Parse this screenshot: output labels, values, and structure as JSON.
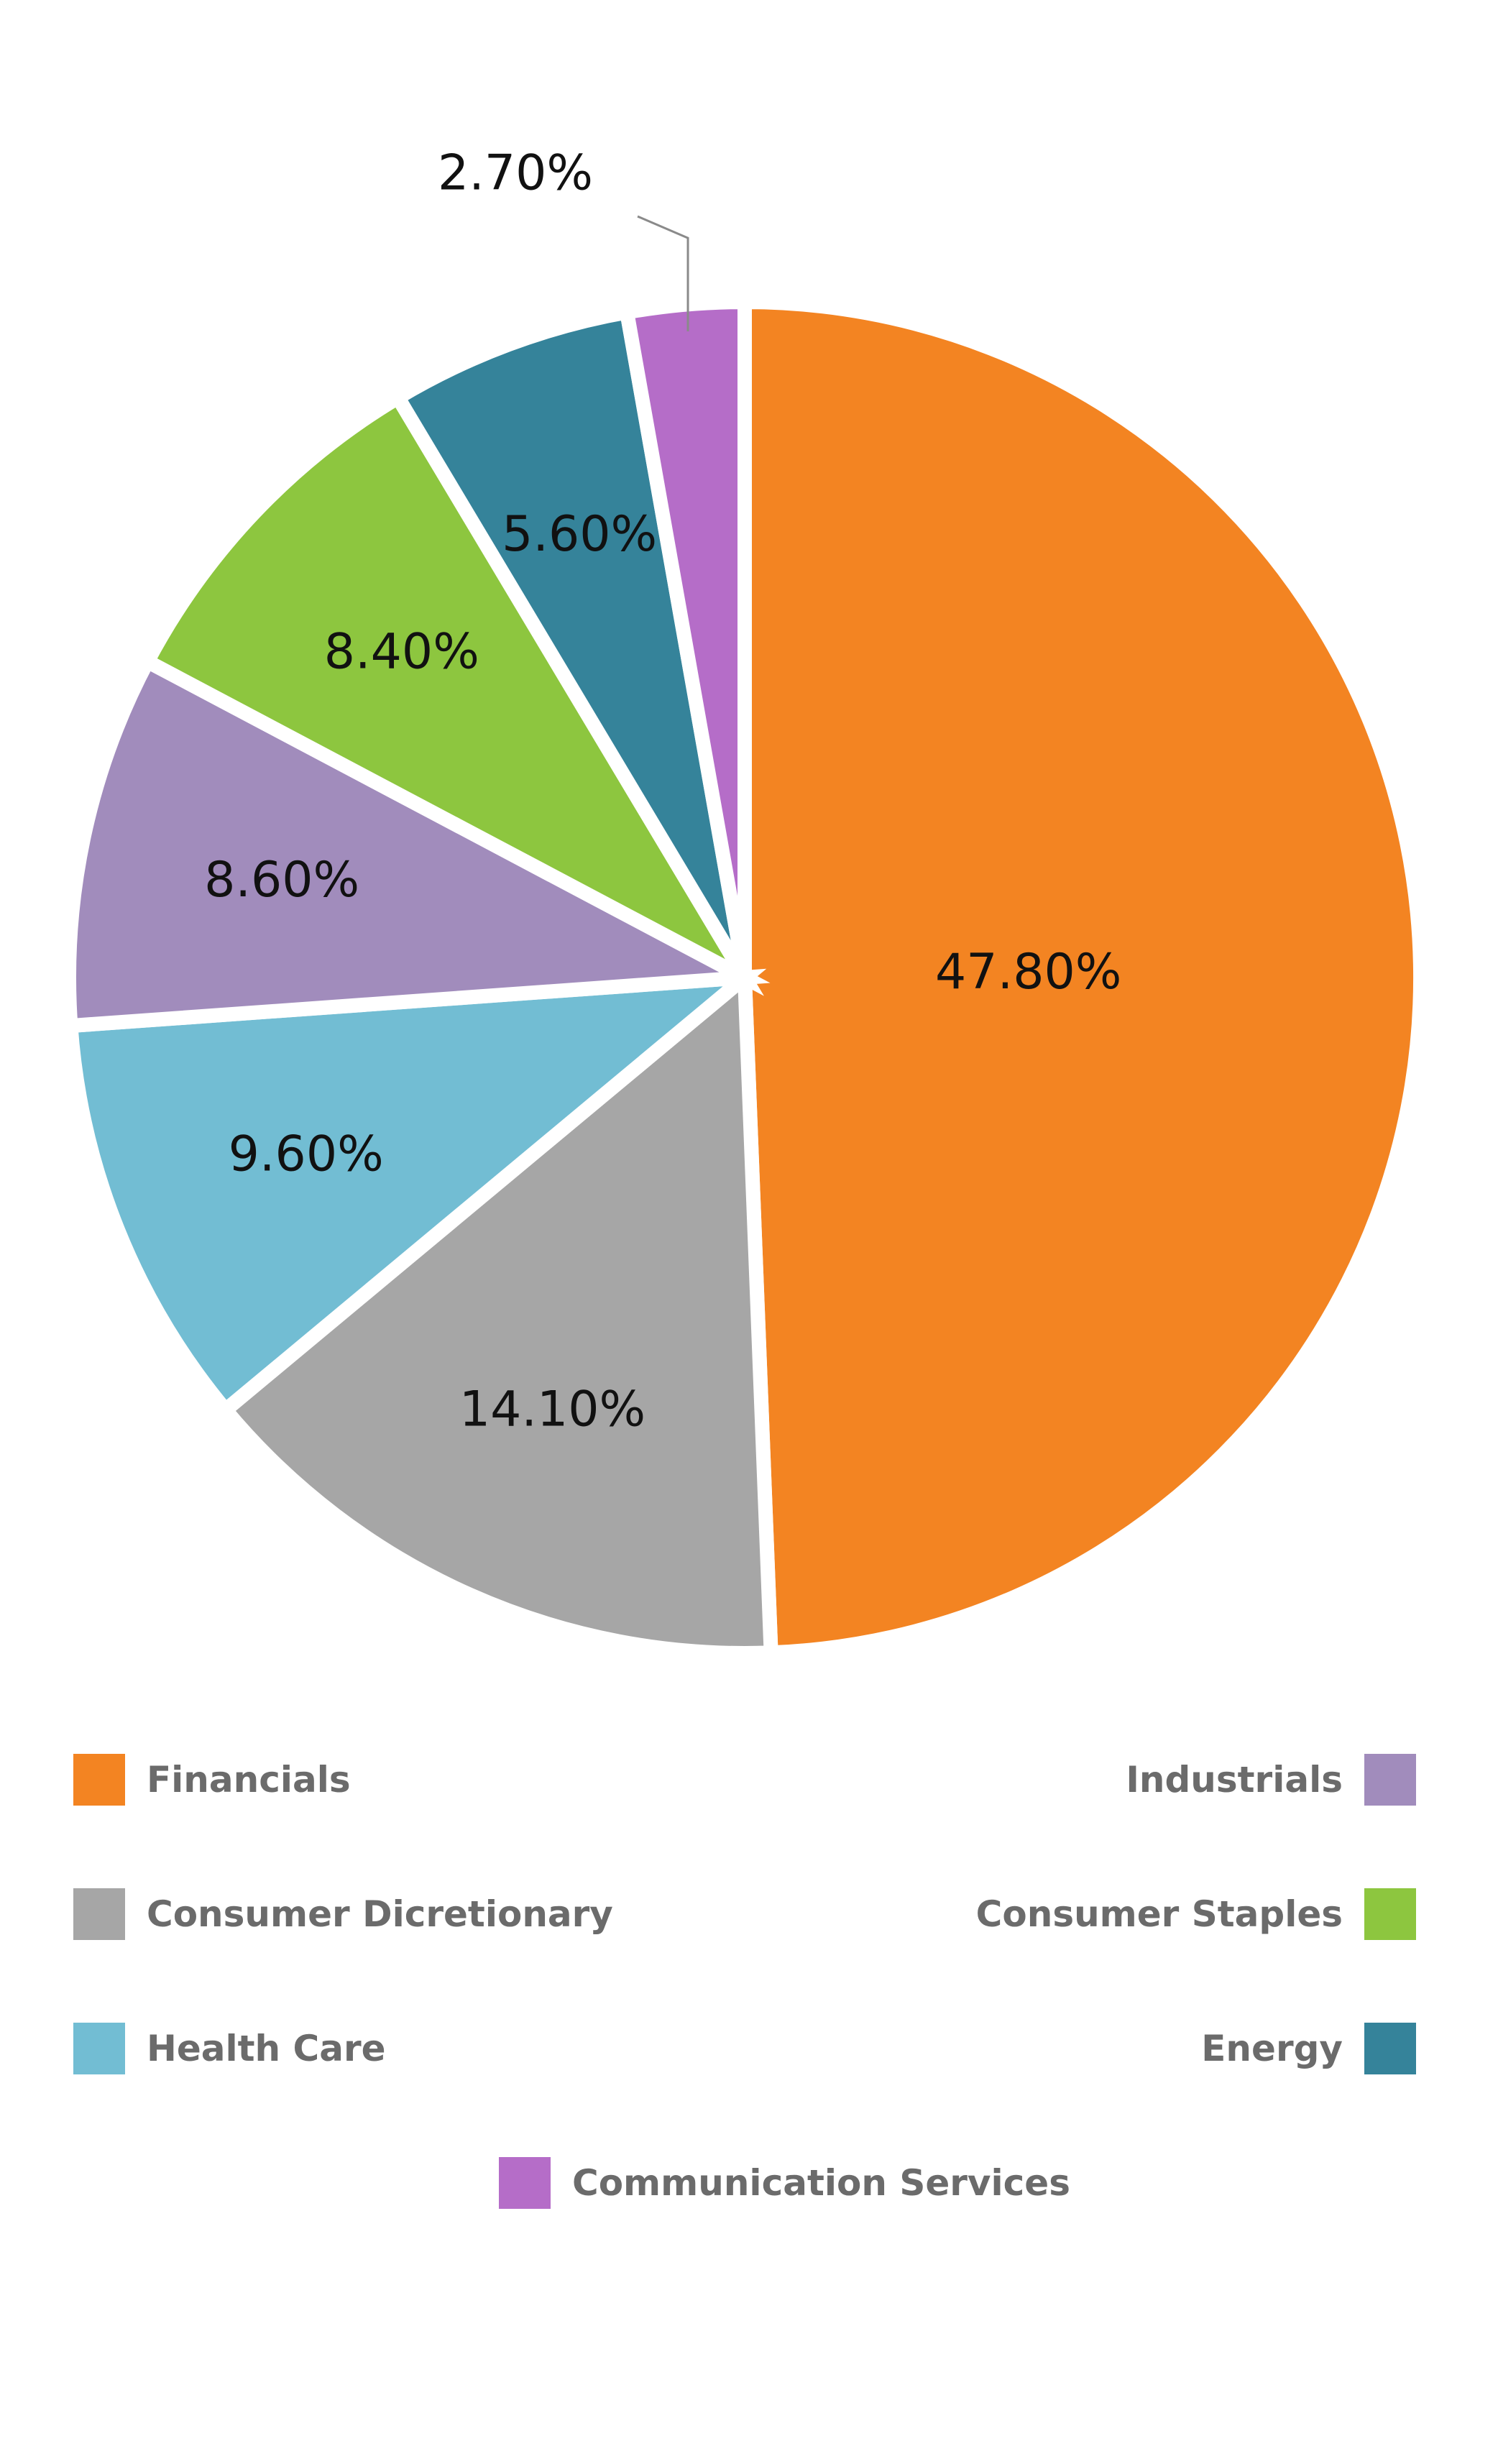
{
  "chart_data": {
    "type": "pie",
    "title": "",
    "slices": [
      {
        "name": "Financials",
        "value": 47.8,
        "label": "47.80%",
        "color": "#F38422"
      },
      {
        "name": "Consumer Dicretionary",
        "value": 14.1,
        "label": "14.10%",
        "color": "#A6A6A6"
      },
      {
        "name": "Health Care",
        "value": 9.6,
        "label": "9.60%",
        "color": "#72BDD3"
      },
      {
        "name": "Industrials",
        "value": 8.6,
        "label": "8.60%",
        "color": "#A18CBC"
      },
      {
        "name": "Consumer Staples",
        "value": 8.4,
        "label": "8.40%",
        "color": "#8DC63F"
      },
      {
        "name": "Energy",
        "value": 5.6,
        "label": "5.60%",
        "color": "#35839A"
      },
      {
        "name": "Communication Services",
        "value": 2.7,
        "label": "2.70%",
        "color": "#B56DC8"
      }
    ],
    "start": "top",
    "direction": "clockwise",
    "legend_position": "bottom"
  }
}
